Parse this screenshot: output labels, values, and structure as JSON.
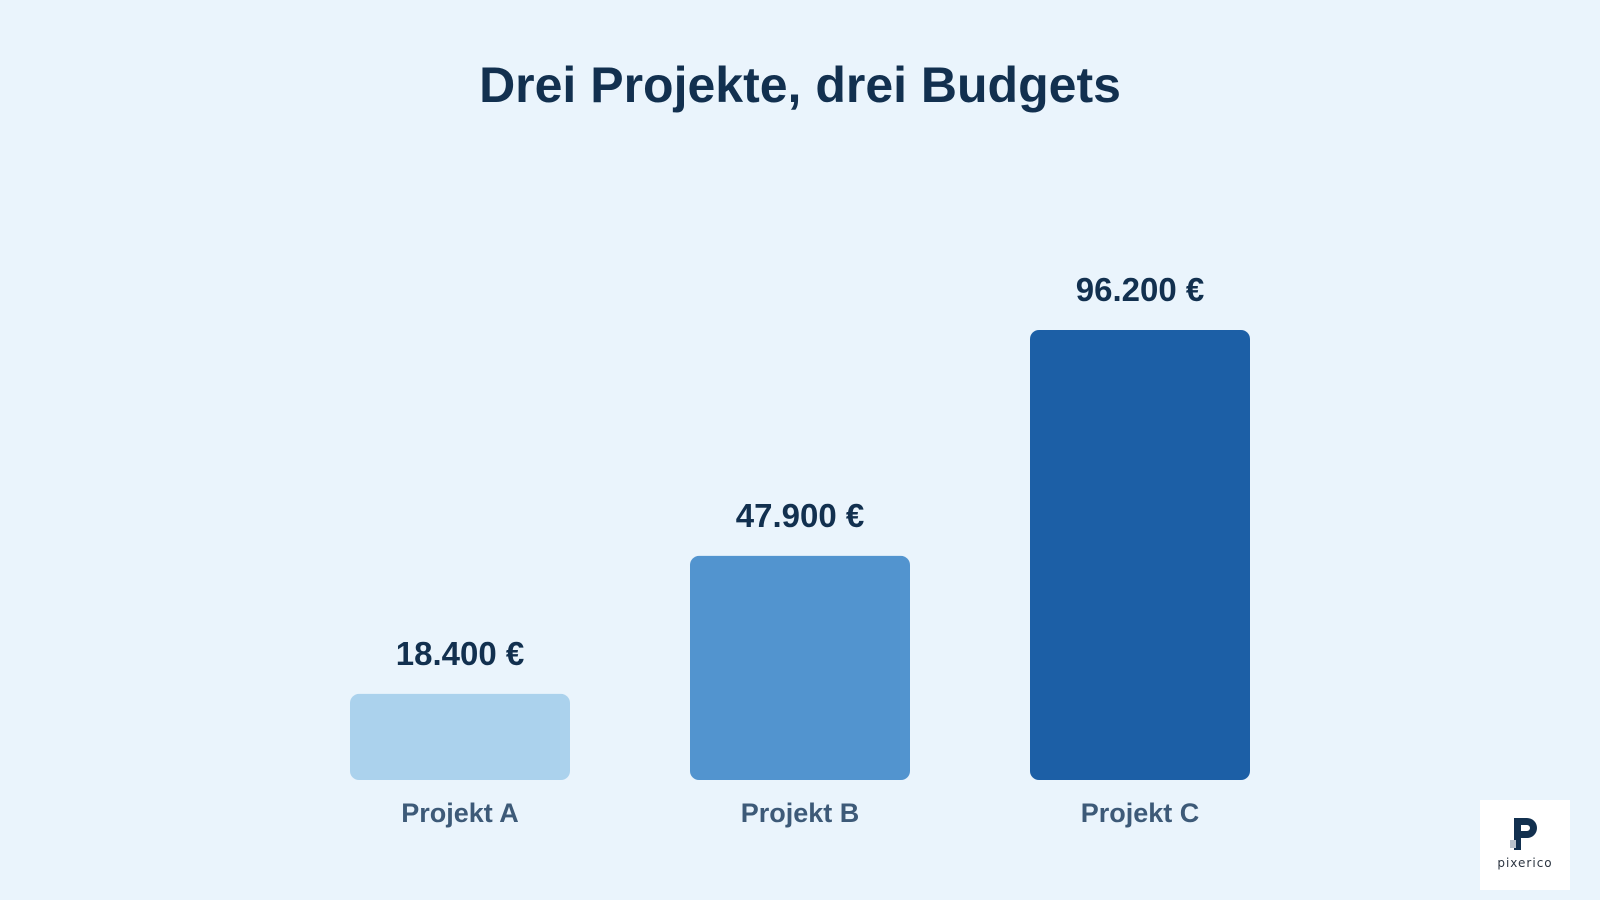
{
  "slide": {
    "title": "Drei Projekte, drei Budgets"
  },
  "chart_data": {
    "type": "bar",
    "title": "Drei Projekte, drei Budgets",
    "categories": [
      "Projekt A",
      "Projekt B",
      "Projekt C"
    ],
    "values": [
      18400,
      47900,
      96200
    ],
    "value_labels": [
      "18.400 €",
      "47.900 €",
      "96.200 €"
    ],
    "colors": [
      "#abd2ed",
      "#5294cf",
      "#1c5fa6"
    ],
    "xlabel": "",
    "ylabel": "",
    "ylim": [
      0,
      96200
    ],
    "grid": false,
    "legend": "none"
  },
  "logo": {
    "text": "pixerico",
    "icon": "pixerico-logo-icon"
  }
}
